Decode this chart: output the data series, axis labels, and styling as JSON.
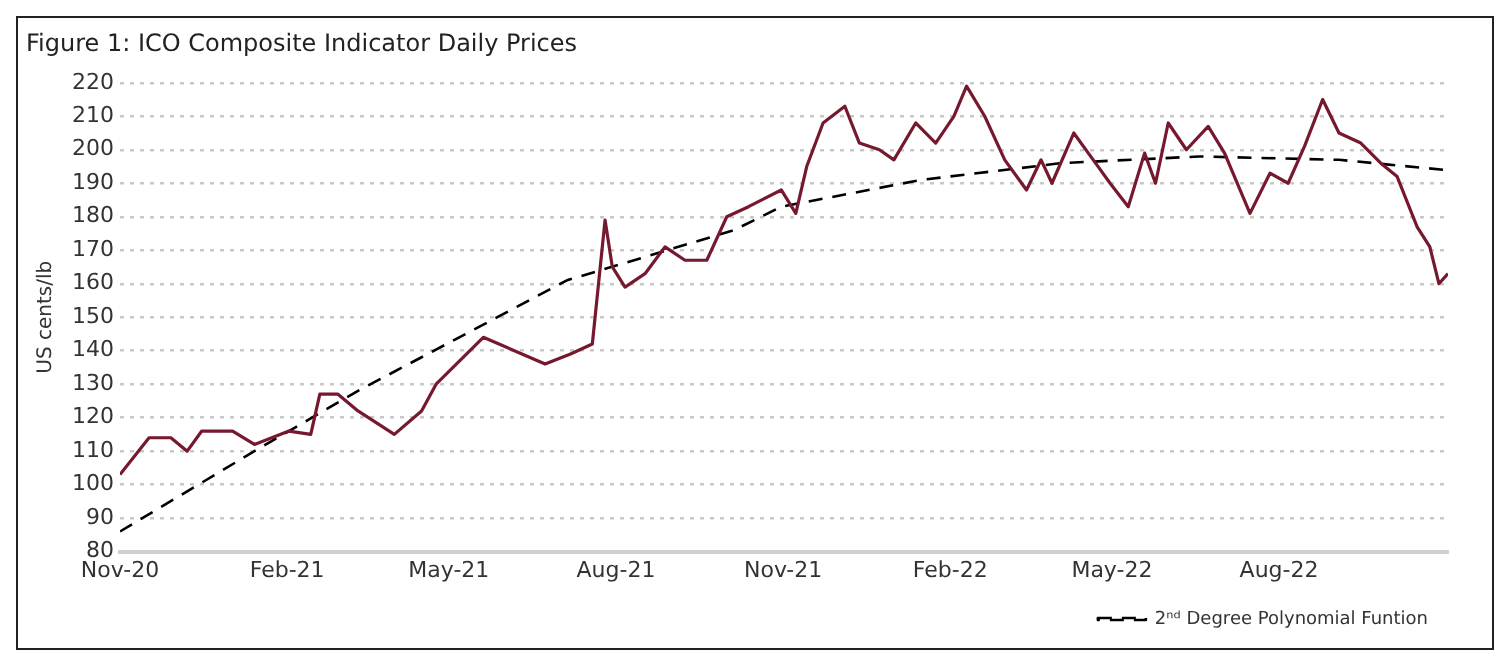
{
  "chart_data": {
    "type": "line",
    "title": "Figure 1: ICO Composite Indicator Daily Prices",
    "ylabel": "US cents/lb",
    "xlim": [
      "2020-11-01",
      "2022-11-02"
    ],
    "xticks": [
      {
        "value": "2020-11-01",
        "label": "Nov-20"
      },
      {
        "value": "2021-02-01",
        "label": "Feb-21"
      },
      {
        "value": "2021-05-01",
        "label": "May-21"
      },
      {
        "value": "2021-08-01",
        "label": "Aug-21"
      },
      {
        "value": "2021-11-01",
        "label": "Nov-21"
      },
      {
        "value": "2022-02-01",
        "label": "Feb-22"
      },
      {
        "value": "2022-05-01",
        "label": "May-22"
      },
      {
        "value": "2022-08-01",
        "label": "Aug-22"
      }
    ],
    "ylim": [
      80,
      220
    ],
    "yticks": [
      80,
      90,
      100,
      110,
      120,
      130,
      140,
      150,
      160,
      170,
      180,
      190,
      200,
      210,
      220
    ],
    "grid": "y",
    "legend": "bottom right",
    "series": [
      {
        "color": "#76192f",
        "line_style": "solid",
        "x": [
          "2020-11-01",
          "2020-11-17",
          "2020-11-29",
          "2020-12-08",
          "2020-12-16",
          "2021-01-02",
          "2021-01-14",
          "2021-02-02",
          "2021-02-14",
          "2021-02-19",
          "2021-03-01",
          "2021-03-12",
          "2021-04-01",
          "2021-04-16",
          "2021-04-24",
          "2021-05-20",
          "2021-06-23",
          "2021-07-07",
          "2021-07-19",
          "2021-07-26",
          "2021-07-30",
          "2021-08-06",
          "2021-08-17",
          "2021-08-28",
          "2021-09-08",
          "2021-09-20",
          "2021-10-01",
          "2021-10-13",
          "2021-10-31",
          "2021-11-08",
          "2021-11-14",
          "2021-11-23",
          "2021-12-05",
          "2021-12-13",
          "2021-12-24",
          "2022-01-01",
          "2022-01-13",
          "2022-01-24",
          "2022-02-03",
          "2022-02-10",
          "2022-02-20",
          "2022-03-03",
          "2022-03-15",
          "2022-03-23",
          "2022-03-29",
          "2022-04-10",
          "2022-04-22",
          "2022-04-30",
          "2022-05-10",
          "2022-05-19",
          "2022-05-25",
          "2022-06-01",
          "2022-06-11",
          "2022-06-23",
          "2022-07-02",
          "2022-07-16",
          "2022-07-27",
          "2022-08-06",
          "2022-08-15",
          "2022-08-25",
          "2022-09-03",
          "2022-09-15",
          "2022-09-26",
          "2022-10-05",
          "2022-10-16",
          "2022-10-23",
          "2022-10-28",
          "2022-11-02"
        ],
        "values": [
          103,
          114,
          114,
          110,
          116,
          116,
          112,
          116,
          115,
          127,
          127,
          122,
          115,
          122,
          130,
          144,
          136,
          139,
          142,
          179,
          165,
          159,
          163,
          171,
          167,
          167,
          180,
          183,
          188,
          181,
          195,
          208,
          213,
          202,
          200,
          197,
          208,
          202,
          210,
          219,
          210,
          197,
          188,
          197,
          190,
          205,
          196,
          190,
          183,
          199,
          190,
          208,
          200,
          207,
          199,
          181,
          193,
          190,
          201,
          215,
          205,
          202,
          196,
          192,
          177,
          171,
          160,
          163
        ]
      },
      {
        "name": "2ⁿᵈ Degree Polynomial Funtion",
        "color": "#000000",
        "line_style": "dashed",
        "x": [
          "2020-11-01",
          "2021-01-14",
          "2021-03-12",
          "2021-07-05",
          "2021-10-05",
          "2021-10-31",
          "2022-01-16",
          "2022-04-03",
          "2022-06-18",
          "2022-09-03",
          "2022-10-31"
        ],
        "values": [
          86,
          110,
          128,
          161,
          176,
          183,
          191,
          196,
          198,
          197,
          194
        ]
      }
    ]
  }
}
